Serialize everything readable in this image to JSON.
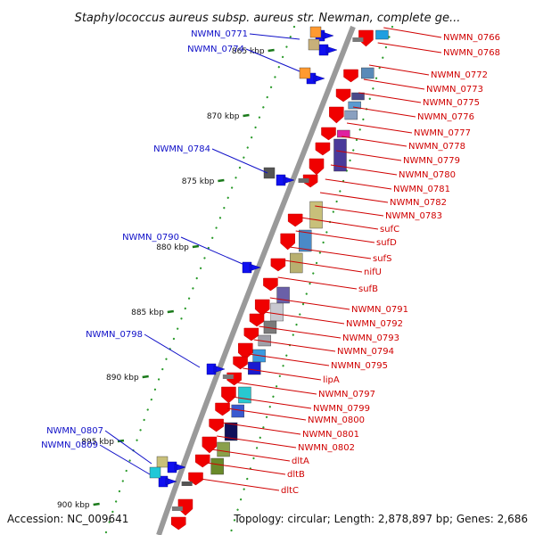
{
  "title": "Staphylococcus aureus subsp. aureus str. Newman, complete ge...",
  "footer": {
    "accession": "Accession: NC_009641",
    "topology": "Topology: circular; Length: 2,878,897 bp; Genes: 2,686"
  },
  "colors": {
    "forward_label": "#1010c8",
    "reverse_label": "#d00000",
    "backbone": "#9a9a9a",
    "tick": "#1a7a1a",
    "dots": "#2a9a2a"
  },
  "kbp_ticks": [
    "865 kbp",
    "870 kbp",
    "875 kbp",
    "880 kbp",
    "885 kbp",
    "890 kbp",
    "895 kbp",
    "900 kbp"
  ],
  "forward_labels": [
    "NWMN_0771",
    "NWMN_0774",
    "NWMN_0784",
    "NWMN_0790",
    "NWMN_0798",
    "NWMN_0807",
    "NWMN_0809"
  ],
  "reverse_labels": [
    "NWMN_0766",
    "NWMN_0768",
    "NWMN_0772",
    "NWMN_0773",
    "NWMN_0775",
    "NWMN_0776",
    "NWMN_0777",
    "NWMN_0778",
    "NWMN_0779",
    "NWMN_0780",
    "NWMN_0781",
    "NWMN_0782",
    "NWMN_0783",
    "sufC",
    "sufD",
    "sufS",
    "nifU",
    "sufB",
    "NWMN_0791",
    "NWMN_0792",
    "NWMN_0793",
    "NWMN_0794",
    "NWMN_0795",
    "lipA",
    "NWMN_0797",
    "NWMN_0799",
    "NWMN_0800",
    "NWMN_0801",
    "NWMN_0802",
    "dltA",
    "dltB",
    "dltC"
  ]
}
